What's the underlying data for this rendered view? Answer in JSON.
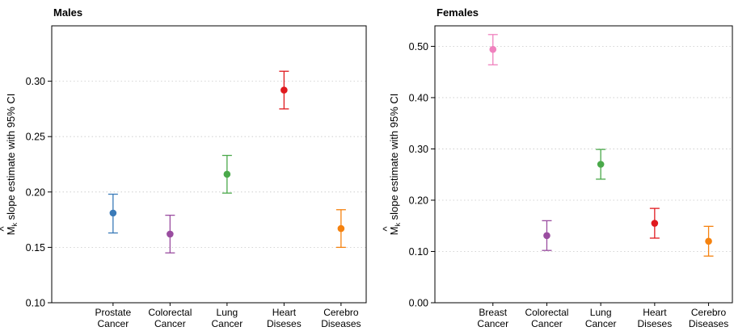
{
  "chart_data": [
    {
      "type": "scatter",
      "title": "Males",
      "ylabel": "slope estimate with 95% CI",
      "ylabel_symbol": "M",
      "ylabel_hat": "^",
      "ylabel_sub": "k",
      "categories": [
        [
          "Prostate",
          "Cancer"
        ],
        [
          "Colorectal",
          "Cancer"
        ],
        [
          "Lung",
          "Cancer"
        ],
        [
          "Heart",
          "Diseses"
        ],
        [
          "Cerebro",
          "Diseases"
        ]
      ],
      "values": [
        0.181,
        0.162,
        0.216,
        0.292,
        0.167
      ],
      "ci_low": [
        0.163,
        0.145,
        0.199,
        0.275,
        0.15
      ],
      "ci_high": [
        0.198,
        0.179,
        0.233,
        0.309,
        0.184
      ],
      "colors": [
        "#3a7ab8",
        "#9a4da0",
        "#4aa94a",
        "#e0191e",
        "#f5820f"
      ],
      "yticks": [
        "0.10",
        "0.15",
        "0.20",
        "0.25",
        "0.30"
      ],
      "ytick_values": [
        0.1,
        0.15,
        0.2,
        0.25,
        0.3
      ],
      "ylim": [
        0.1,
        0.35
      ],
      "grid": true
    },
    {
      "type": "scatter",
      "title": "Females",
      "ylabel": "slope estimate with 95% CI",
      "ylabel_symbol": "M",
      "ylabel_hat": "^",
      "ylabel_sub": "k",
      "categories": [
        [
          "Breast",
          "Cancer"
        ],
        [
          "Colorectal",
          "Cancer"
        ],
        [
          "Lung",
          "Cancer"
        ],
        [
          "Heart",
          "Diseses"
        ],
        [
          "Cerebro",
          "Diseases"
        ]
      ],
      "values": [
        0.494,
        0.131,
        0.27,
        0.155,
        0.12
      ],
      "ci_low": [
        0.464,
        0.102,
        0.241,
        0.126,
        0.091
      ],
      "ci_high": [
        0.523,
        0.16,
        0.299,
        0.184,
        0.149
      ],
      "colors": [
        "#f081be",
        "#9a4da0",
        "#4aa94a",
        "#e0191e",
        "#f5820f"
      ],
      "yticks": [
        "0.00",
        "0.10",
        "0.20",
        "0.30",
        "0.40",
        "0.50"
      ],
      "ytick_values": [
        0.0,
        0.1,
        0.2,
        0.3,
        0.4,
        0.5
      ],
      "ylim": [
        0.0,
        0.54
      ],
      "grid": true
    }
  ]
}
